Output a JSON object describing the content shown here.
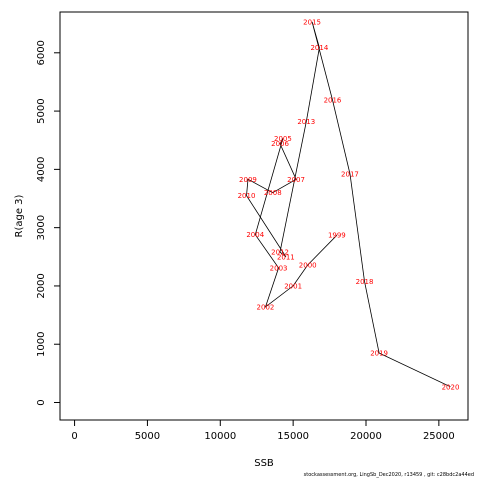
{
  "chart_data": {
    "type": "line",
    "xlabel": "SSB",
    "ylabel": "R(age 3)",
    "xlim": [
      -1000,
      27000
    ],
    "ylim": [
      -300,
      6700
    ],
    "x_ticks": [
      0,
      5000,
      10000,
      15000,
      20000,
      25000
    ],
    "y_ticks": [
      0,
      1000,
      2000,
      3000,
      4000,
      5000,
      6000
    ],
    "line_color": "#000000",
    "label_color": "#ff0000",
    "points": [
      {
        "year": "1999",
        "x": 18000,
        "y": 2870
      },
      {
        "year": "2000",
        "x": 16000,
        "y": 2360
      },
      {
        "year": "2001",
        "x": 15000,
        "y": 2000
      },
      {
        "year": "2002",
        "x": 13100,
        "y": 1640
      },
      {
        "year": "2003",
        "x": 14000,
        "y": 2310
      },
      {
        "year": "2004",
        "x": 12400,
        "y": 2880
      },
      {
        "year": "2005",
        "x": 14300,
        "y": 4530
      },
      {
        "year": "2006",
        "x": 14100,
        "y": 4440
      },
      {
        "year": "2007",
        "x": 15200,
        "y": 3830
      },
      {
        "year": "2008",
        "x": 13600,
        "y": 3600
      },
      {
        "year": "2009",
        "x": 11900,
        "y": 3830
      },
      {
        "year": "2010",
        "x": 11800,
        "y": 3550
      },
      {
        "year": "2011",
        "x": 14500,
        "y": 2500
      },
      {
        "year": "2012",
        "x": 14100,
        "y": 2580
      },
      {
        "year": "2013",
        "x": 15900,
        "y": 4820
      },
      {
        "year": "2014",
        "x": 16800,
        "y": 6090
      },
      {
        "year": "2015",
        "x": 16300,
        "y": 6530
      },
      {
        "year": "2016",
        "x": 17700,
        "y": 5190
      },
      {
        "year": "2017",
        "x": 18900,
        "y": 3920
      },
      {
        "year": "2018",
        "x": 19900,
        "y": 2080
      },
      {
        "year": "2019",
        "x": 20900,
        "y": 850
      },
      {
        "year": "2020",
        "x": 25800,
        "y": 270
      }
    ]
  },
  "footer": {
    "credit": "stockassessment.org, LingSb_Dec2020, r13459 ,  git: c28bdc2a44ed"
  }
}
